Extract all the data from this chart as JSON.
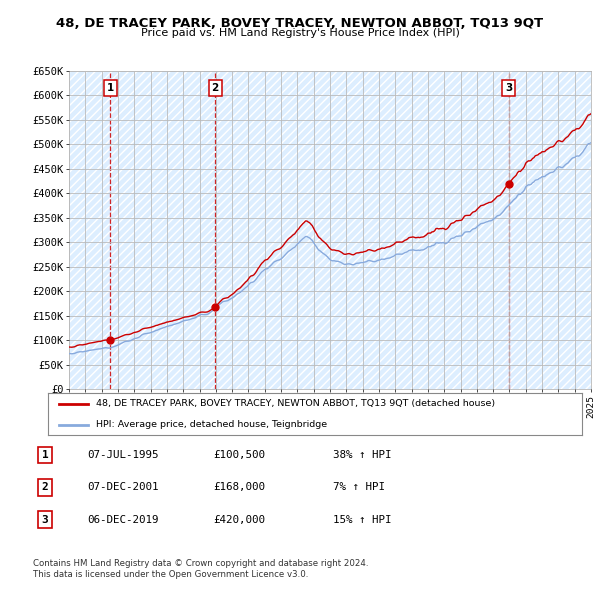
{
  "title": "48, DE TRACEY PARK, BOVEY TRACEY, NEWTON ABBOT, TQ13 9QT",
  "subtitle": "Price paid vs. HM Land Registry's House Price Index (HPI)",
  "ylim": [
    0,
    650000
  ],
  "yticks": [
    0,
    50000,
    100000,
    150000,
    200000,
    250000,
    300000,
    350000,
    400000,
    450000,
    500000,
    550000,
    600000,
    650000
  ],
  "ytick_labels": [
    "£0",
    "£50K",
    "£100K",
    "£150K",
    "£200K",
    "£250K",
    "£300K",
    "£350K",
    "£400K",
    "£450K",
    "£500K",
    "£550K",
    "£600K",
    "£650K"
  ],
  "sale_prices": [
    100500,
    168000,
    420000
  ],
  "sale_labels": [
    "1",
    "2",
    "3"
  ],
  "legend_line1": "48, DE TRACEY PARK, BOVEY TRACEY, NEWTON ABBOT, TQ13 9QT (detached house)",
  "legend_line2": "HPI: Average price, detached house, Teignbridge",
  "table_data": [
    [
      "1",
      "07-JUL-1995",
      "£100,500",
      "38% ↑ HPI"
    ],
    [
      "2",
      "07-DEC-2001",
      "£168,000",
      "7% ↑ HPI"
    ],
    [
      "3",
      "06-DEC-2019",
      "£420,000",
      "15% ↑ HPI"
    ]
  ],
  "footnote1": "Contains HM Land Registry data © Crown copyright and database right 2024.",
  "footnote2": "This data is licensed under the Open Government Licence v3.0.",
  "red_color": "#cc0000",
  "blue_color": "#88aadd",
  "grid_color": "#bbbbbb",
  "bg_color": "#ffffff",
  "plot_bg_color": "#ddeeff",
  "vline_color": "#cc0000",
  "start_year": 1993,
  "end_year": 2025
}
